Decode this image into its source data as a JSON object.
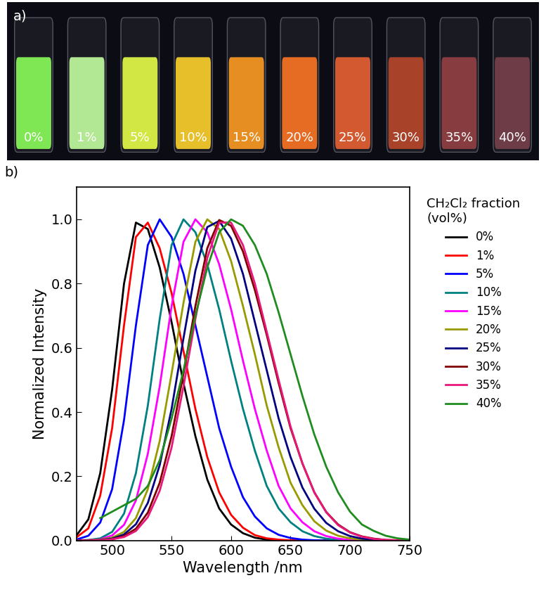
{
  "photo": {
    "panel_label": "a)",
    "labels": [
      "0%",
      "1%",
      "5%",
      "10%",
      "15%",
      "20%",
      "25%",
      "30%",
      "35%",
      "40%"
    ],
    "colors": [
      "#8cff5a",
      "#c4ffa0",
      "#e8ff48",
      "#ffd22c",
      "#ff9c24",
      "#ff7624",
      "#e86232",
      "#b8482c",
      "#944044",
      "#78404c"
    ]
  },
  "chart_data": {
    "type": "line",
    "panel_label": "b)",
    "x_label": "Wavelength /nm",
    "y_label": "Normalized Intensity",
    "legend_title": "CH₂Cl₂ fraction\n(vol%)",
    "legend": "right",
    "xlim": [
      470,
      750
    ],
    "xticks": [
      500,
      550,
      600,
      650,
      700,
      750
    ],
    "ylim": [
      0,
      1.1
    ],
    "yticks": [
      {
        "value": 0,
        "label": "0.0"
      },
      0.2,
      0.4,
      0.6,
      0.8,
      {
        "value": 1,
        "label": "1.0"
      }
    ],
    "x": [
      470,
      480,
      490,
      500,
      510,
      520,
      530,
      540,
      550,
      560,
      570,
      580,
      590,
      600,
      610,
      620,
      630,
      640,
      650,
      660,
      670,
      680,
      690,
      700,
      710,
      720,
      730,
      740,
      750
    ],
    "series": [
      {
        "name": "0%",
        "color": "#000000",
        "values": [
          0.016,
          0.066,
          0.21,
          0.47,
          0.8,
          0.99,
          0.97,
          0.85,
          0.68,
          0.49,
          0.325,
          0.19,
          0.1,
          0.05,
          0.023,
          0.009,
          0.003,
          0.001,
          0,
          0,
          0,
          0,
          0,
          0,
          0,
          0,
          0,
          0,
          0
        ]
      },
      {
        "name": "1%",
        "color": "#ff0000",
        "values": [
          0.01,
          0.038,
          0.14,
          0.35,
          0.67,
          0.945,
          0.99,
          0.91,
          0.77,
          0.59,
          0.41,
          0.26,
          0.15,
          0.08,
          0.04,
          0.017,
          0.007,
          0.003,
          0.001,
          0,
          0,
          0,
          0,
          0,
          0,
          0,
          0,
          0,
          0
        ]
      },
      {
        "name": "5%",
        "color": "#0000ff",
        "values": [
          0.003,
          0.015,
          0.056,
          0.16,
          0.375,
          0.67,
          0.92,
          1.0,
          0.945,
          0.83,
          0.67,
          0.51,
          0.35,
          0.23,
          0.135,
          0.075,
          0.038,
          0.018,
          0.008,
          0.003,
          0.001,
          0,
          0,
          0,
          0,
          0,
          0,
          0,
          0
        ]
      },
      {
        "name": "10%",
        "color": "#008080",
        "values": [
          0,
          0.002,
          0.007,
          0.027,
          0.084,
          0.21,
          0.42,
          0.69,
          0.92,
          1.0,
          0.96,
          0.86,
          0.72,
          0.56,
          0.41,
          0.28,
          0.17,
          0.1,
          0.057,
          0.029,
          0.014,
          0.006,
          0.002,
          0.001,
          0,
          0,
          0,
          0,
          0
        ]
      },
      {
        "name": "15%",
        "color": "#ff00ff",
        "values": [
          0,
          0.001,
          0.004,
          0.016,
          0.049,
          0.125,
          0.27,
          0.48,
          0.73,
          0.93,
          1.0,
          0.96,
          0.86,
          0.72,
          0.56,
          0.41,
          0.28,
          0.17,
          0.1,
          0.057,
          0.029,
          0.014,
          0.006,
          0.002,
          0.001,
          0,
          0,
          0,
          0
        ]
      },
      {
        "name": "20%",
        "color": "#999900",
        "values": [
          0,
          0.001,
          0.003,
          0.009,
          0.027,
          0.07,
          0.16,
          0.31,
          0.52,
          0.74,
          0.93,
          1.0,
          0.97,
          0.87,
          0.73,
          0.58,
          0.42,
          0.29,
          0.18,
          0.11,
          0.06,
          0.031,
          0.015,
          0.007,
          0.003,
          0.001,
          0,
          0,
          0
        ]
      },
      {
        "name": "25%",
        "color": "#000080",
        "values": [
          0,
          0,
          0.002,
          0.006,
          0.019,
          0.051,
          0.117,
          0.235,
          0.41,
          0.63,
          0.84,
          0.976,
          0.995,
          0.94,
          0.83,
          0.68,
          0.53,
          0.38,
          0.26,
          0.165,
          0.099,
          0.055,
          0.029,
          0.014,
          0.006,
          0.003,
          0.001,
          0,
          0
        ]
      },
      {
        "name": "30%",
        "color": "#800000",
        "values": [
          0,
          0,
          0.001,
          0.004,
          0.014,
          0.037,
          0.087,
          0.18,
          0.325,
          0.52,
          0.73,
          0.91,
          0.998,
          0.98,
          0.9,
          0.78,
          0.64,
          0.49,
          0.35,
          0.24,
          0.15,
          0.089,
          0.05,
          0.026,
          0.013,
          0.006,
          0.002,
          0.001,
          0
        ]
      },
      {
        "name": "35%",
        "color": "#e8177a",
        "values": [
          0,
          0,
          0.001,
          0.004,
          0.011,
          0.03,
          0.073,
          0.155,
          0.29,
          0.48,
          0.69,
          0.88,
          0.99,
          0.99,
          0.92,
          0.8,
          0.65,
          0.5,
          0.355,
          0.24,
          0.15,
          0.088,
          0.048,
          0.025,
          0.012,
          0.005,
          0.002,
          0.001,
          0
        ]
      },
      {
        "name": "40%",
        "color": "#1e8c1e",
        "values": [
          null,
          null,
          0.07,
          0.09,
          0.11,
          0.13,
          0.17,
          0.25,
          0.38,
          0.53,
          0.7,
          0.85,
          0.96,
          1.0,
          0.98,
          0.92,
          0.83,
          0.71,
          0.58,
          0.45,
          0.33,
          0.23,
          0.15,
          0.09,
          0.05,
          0.03,
          0.015,
          0.007,
          0.003
        ]
      }
    ]
  }
}
